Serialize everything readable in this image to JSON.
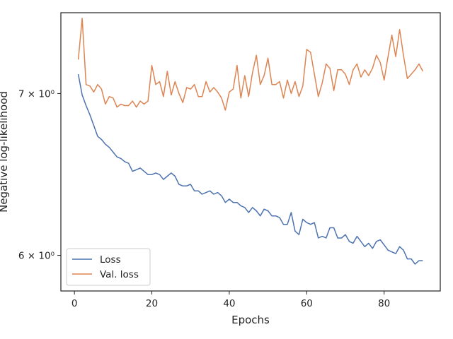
{
  "chart_data": {
    "type": "line",
    "xlabel": "Epochs",
    "ylabel": "Negative log-likelihood",
    "y_scale": "log",
    "xlim": [
      -3.5,
      94.5
    ],
    "ylim": [
      5.8,
      7.56
    ],
    "x_ticks": [
      0,
      20,
      40,
      60,
      80
    ],
    "x_tick_labels": [
      "0",
      "20",
      "40",
      "60",
      "80"
    ],
    "y_ticks": [
      6,
      7
    ],
    "y_tick_labels": [
      "6 × 10⁰",
      "7 × 10⁰"
    ],
    "grid": false,
    "legend_position": "lower-left",
    "x": [
      1,
      2,
      3,
      4,
      5,
      6,
      7,
      8,
      9,
      10,
      11,
      12,
      13,
      14,
      15,
      16,
      17,
      18,
      19,
      20,
      21,
      22,
      23,
      24,
      25,
      26,
      27,
      28,
      29,
      30,
      31,
      32,
      33,
      34,
      35,
      36,
      37,
      38,
      39,
      40,
      41,
      42,
      43,
      44,
      45,
      46,
      47,
      48,
      49,
      50,
      51,
      52,
      53,
      54,
      55,
      56,
      57,
      58,
      59,
      60,
      61,
      62,
      63,
      64,
      65,
      66,
      67,
      68,
      69,
      70,
      71,
      72,
      73,
      74,
      75,
      76,
      77,
      78,
      79,
      80,
      81,
      82,
      83,
      84,
      85,
      86,
      87,
      88,
      89,
      90
    ],
    "series": [
      {
        "name": "Loss",
        "color": "#4c72b0",
        "values": [
          7.13,
          6.99,
          6.92,
          6.86,
          6.79,
          6.72,
          6.7,
          6.67,
          6.65,
          6.62,
          6.59,
          6.58,
          6.56,
          6.55,
          6.5,
          6.51,
          6.52,
          6.5,
          6.48,
          6.48,
          6.49,
          6.48,
          6.45,
          6.47,
          6.49,
          6.47,
          6.42,
          6.41,
          6.41,
          6.42,
          6.38,
          6.38,
          6.36,
          6.37,
          6.38,
          6.36,
          6.37,
          6.35,
          6.31,
          6.33,
          6.31,
          6.31,
          6.29,
          6.28,
          6.25,
          6.28,
          6.26,
          6.23,
          6.27,
          6.26,
          6.23,
          6.23,
          6.22,
          6.18,
          6.18,
          6.25,
          6.14,
          6.12,
          6.21,
          6.19,
          6.18,
          6.19,
          6.1,
          6.11,
          6.1,
          6.16,
          6.16,
          6.1,
          6.1,
          6.12,
          6.08,
          6.07,
          6.11,
          6.08,
          6.05,
          6.07,
          6.04,
          6.08,
          6.09,
          6.06,
          6.03,
          6.02,
          6.01,
          6.05,
          6.03,
          5.98,
          5.98,
          5.95,
          5.97,
          5.97
        ]
      },
      {
        "name": "Val. loss",
        "color": "#dd8452",
        "values": [
          7.23,
          7.52,
          7.06,
          7.05,
          7.01,
          7.06,
          7.03,
          6.93,
          6.98,
          6.97,
          6.91,
          6.93,
          6.92,
          6.92,
          6.95,
          6.91,
          6.95,
          6.93,
          6.95,
          7.19,
          7.06,
          7.08,
          6.98,
          7.15,
          6.99,
          7.08,
          7.0,
          6.94,
          7.04,
          7.03,
          7.06,
          6.98,
          6.98,
          7.08,
          7.01,
          7.04,
          7.01,
          6.97,
          6.89,
          7.01,
          7.03,
          7.19,
          6.97,
          7.12,
          6.98,
          7.14,
          7.26,
          7.06,
          7.12,
          7.24,
          7.06,
          7.06,
          7.08,
          6.97,
          7.09,
          7.0,
          7.08,
          6.98,
          7.05,
          7.3,
          7.28,
          7.13,
          6.98,
          7.07,
          7.2,
          7.17,
          7.02,
          7.16,
          7.16,
          7.13,
          7.06,
          7.16,
          7.2,
          7.11,
          7.16,
          7.12,
          7.17,
          7.26,
          7.21,
          7.09,
          7.25,
          7.4,
          7.25,
          7.44,
          7.26,
          7.1,
          7.13,
          7.16,
          7.2,
          7.15
        ]
      }
    ]
  }
}
